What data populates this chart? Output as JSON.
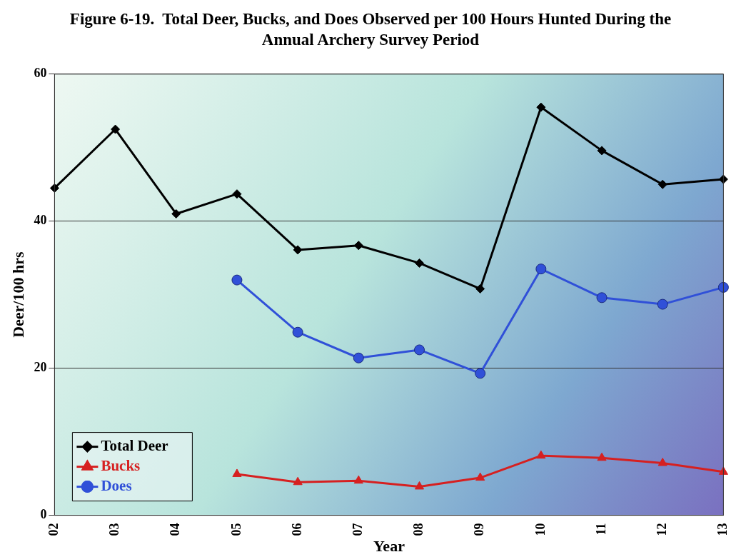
{
  "chart_data": {
    "type": "line",
    "title": "Figure 6-19.  Total Deer, Bucks, and Does Observed per 100 Hours Hunted During the Annual Archery Survey Period",
    "xlabel": "Year",
    "ylabel": "Deer/100 hrs",
    "categories": [
      "02",
      "03",
      "04",
      "05",
      "06",
      "07",
      "08",
      "09",
      "10",
      "11",
      "12",
      "13"
    ],
    "series": [
      {
        "name": "Total Deer",
        "color": "#000000",
        "marker": "diamond",
        "values": [
          44.5,
          52.5,
          41.0,
          43.7,
          36.1,
          36.7,
          34.3,
          30.8,
          55.5,
          49.6,
          45.0,
          45.7
        ]
      },
      {
        "name": "Bucks",
        "color": "#d62020",
        "marker": "triangle",
        "values": [
          null,
          null,
          null,
          5.6,
          4.5,
          4.7,
          3.9,
          5.1,
          8.1,
          7.8,
          7.1,
          5.9
        ]
      },
      {
        "name": "Does",
        "color": "#3050d8",
        "marker": "circle",
        "values": [
          null,
          null,
          null,
          32.0,
          24.9,
          21.4,
          22.5,
          19.3,
          33.5,
          29.6,
          28.7,
          31.0
        ]
      }
    ],
    "ylim": [
      0,
      60
    ],
    "yticks": [
      0,
      20,
      40,
      60
    ],
    "grid": "y",
    "legend": "bottom left"
  }
}
